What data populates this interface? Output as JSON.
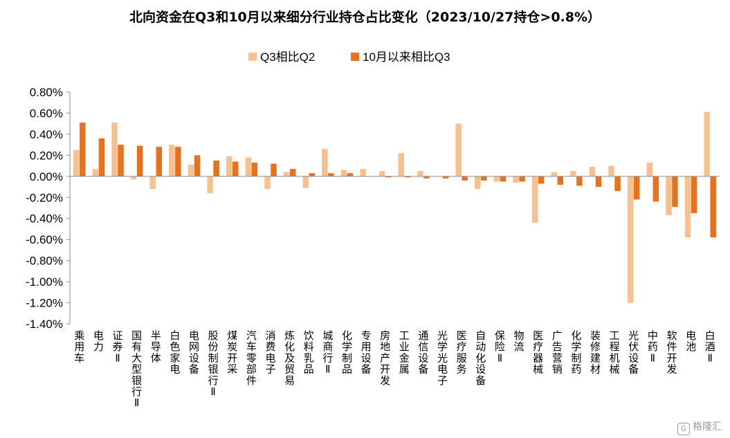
{
  "chart_data": {
    "type": "bar",
    "title": "北向资金在Q3和10月以来细分行业持仓占比变化（2023/10/27持仓>0.8%）",
    "categories": [
      "乘用车",
      "电力",
      "证券Ⅱ",
      "国有大型银行Ⅱ",
      "半导体",
      "白色家电",
      "电网设备",
      "股份制银行Ⅱ",
      "煤炭开采",
      "汽车零部件",
      "消费电子",
      "炼化及贸易",
      "饮料乳品",
      "城商行Ⅱ",
      "化学制品",
      "专用设备",
      "房地产开发",
      "工业金属",
      "通信设备",
      "光学光电子",
      "医疗服务",
      "自动化设备",
      "保险Ⅱ",
      "物流",
      "医疗器械",
      "广告营销",
      "化学制药",
      "装修建材",
      "工程机械",
      "光伏设备",
      "中药Ⅱ",
      "软件开发",
      "电池",
      "白酒Ⅱ"
    ],
    "series": [
      {
        "name": "Q3相比Q2",
        "color": "#F8C08F",
        "values": [
          0.25,
          0.07,
          0.51,
          -0.03,
          -0.12,
          0.3,
          0.11,
          -0.16,
          0.19,
          0.18,
          -0.12,
          0.04,
          -0.11,
          0.26,
          0.06,
          0.07,
          0.05,
          0.22,
          0.05,
          0.0,
          0.5,
          -0.12,
          -0.05,
          -0.06,
          -0.44,
          0.04,
          0.05,
          0.09,
          0.1,
          -1.2,
          0.13,
          -0.37,
          -0.58,
          0.61
        ]
      },
      {
        "name": "10月以来相比Q3",
        "color": "#E8711C",
        "values": [
          0.51,
          0.36,
          0.3,
          0.29,
          0.28,
          0.28,
          0.2,
          0.15,
          0.14,
          0.13,
          0.12,
          0.07,
          0.03,
          0.03,
          0.03,
          0.0,
          -0.01,
          -0.01,
          -0.02,
          -0.02,
          -0.04,
          -0.04,
          -0.05,
          -0.05,
          -0.07,
          -0.08,
          -0.09,
          -0.1,
          -0.14,
          -0.22,
          -0.24,
          -0.29,
          -0.35,
          -0.58
        ]
      }
    ],
    "yticks": [
      "0.80%",
      "0.60%",
      "0.40%",
      "0.20%",
      "0.00%",
      "-0.20%",
      "-0.40%",
      "-0.60%",
      "-0.80%",
      "-1.00%",
      "-1.20%",
      "-1.40%"
    ],
    "ylim": [
      -1.4,
      0.8
    ],
    "grid": false,
    "legend_position": "top"
  },
  "watermark": {
    "logo": "G",
    "text": "格隆汇"
  }
}
